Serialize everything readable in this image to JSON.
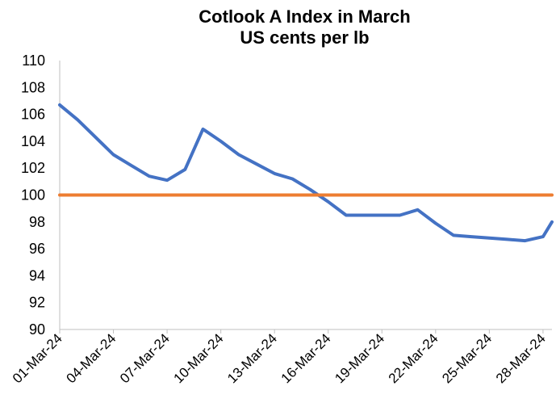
{
  "chart_data": {
    "type": "line",
    "title_line1": "Cotlook A Index in March",
    "title_line2": "US cents per lb",
    "xlabel": "",
    "ylabel": "",
    "ylim": [
      90,
      110
    ],
    "yticks": [
      "90",
      "92",
      "94",
      "96",
      "98",
      "100",
      "102",
      "104",
      "106",
      "108",
      "110"
    ],
    "xtick_labels": [
      "01-Mar-24",
      "04-Mar-24",
      "07-Mar-24",
      "10-Mar-24",
      "13-Mar-24",
      "16-Mar-24",
      "19-Mar-24",
      "22-Mar-24",
      "25-Mar-24",
      "28-Mar-24"
    ],
    "xlim_days": [
      1,
      28.5
    ],
    "grid": false,
    "legend": "none",
    "series": [
      {
        "color": "#4472C4",
        "x": [
          1,
          2,
          3,
          4,
          5,
          6,
          7,
          8,
          9,
          10,
          11,
          12,
          13,
          14,
          15,
          16,
          17,
          18,
          19,
          20,
          21,
          22,
          23,
          24,
          25,
          26,
          27,
          28,
          28.5
        ],
        "values": [
          106.7,
          105.6,
          104.3,
          103.0,
          102.2,
          101.4,
          101.1,
          101.9,
          104.9,
          104.0,
          103.0,
          102.3,
          101.6,
          101.2,
          100.4,
          99.5,
          98.5,
          98.5,
          98.5,
          98.5,
          98.9,
          97.9,
          97.0,
          96.9,
          96.8,
          96.7,
          96.6,
          96.9,
          98.0
        ]
      },
      {
        "color": "#ED7D31",
        "x": [
          1,
          28.5
        ],
        "values": [
          100,
          100
        ]
      }
    ]
  }
}
